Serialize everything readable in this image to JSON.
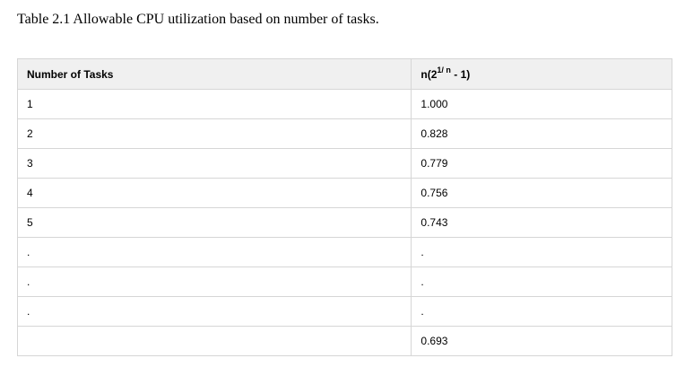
{
  "caption": "Table 2.1 Allowable CPU utilization based on number of tasks.",
  "table": {
    "headers": {
      "col1": "Number of Tasks",
      "col2_base": "n(2",
      "col2_exponent": "1/ n",
      "col2_tail": " - 1)"
    },
    "rows": [
      [
        "1",
        "1.000"
      ],
      [
        "2",
        "0.828"
      ],
      [
        "3",
        "0.779"
      ],
      [
        "4",
        "0.756"
      ],
      [
        "5",
        "0.743"
      ],
      [
        ".",
        "."
      ],
      [
        ".",
        "."
      ],
      [
        ".",
        "."
      ],
      [
        "",
        "0.693"
      ]
    ]
  }
}
